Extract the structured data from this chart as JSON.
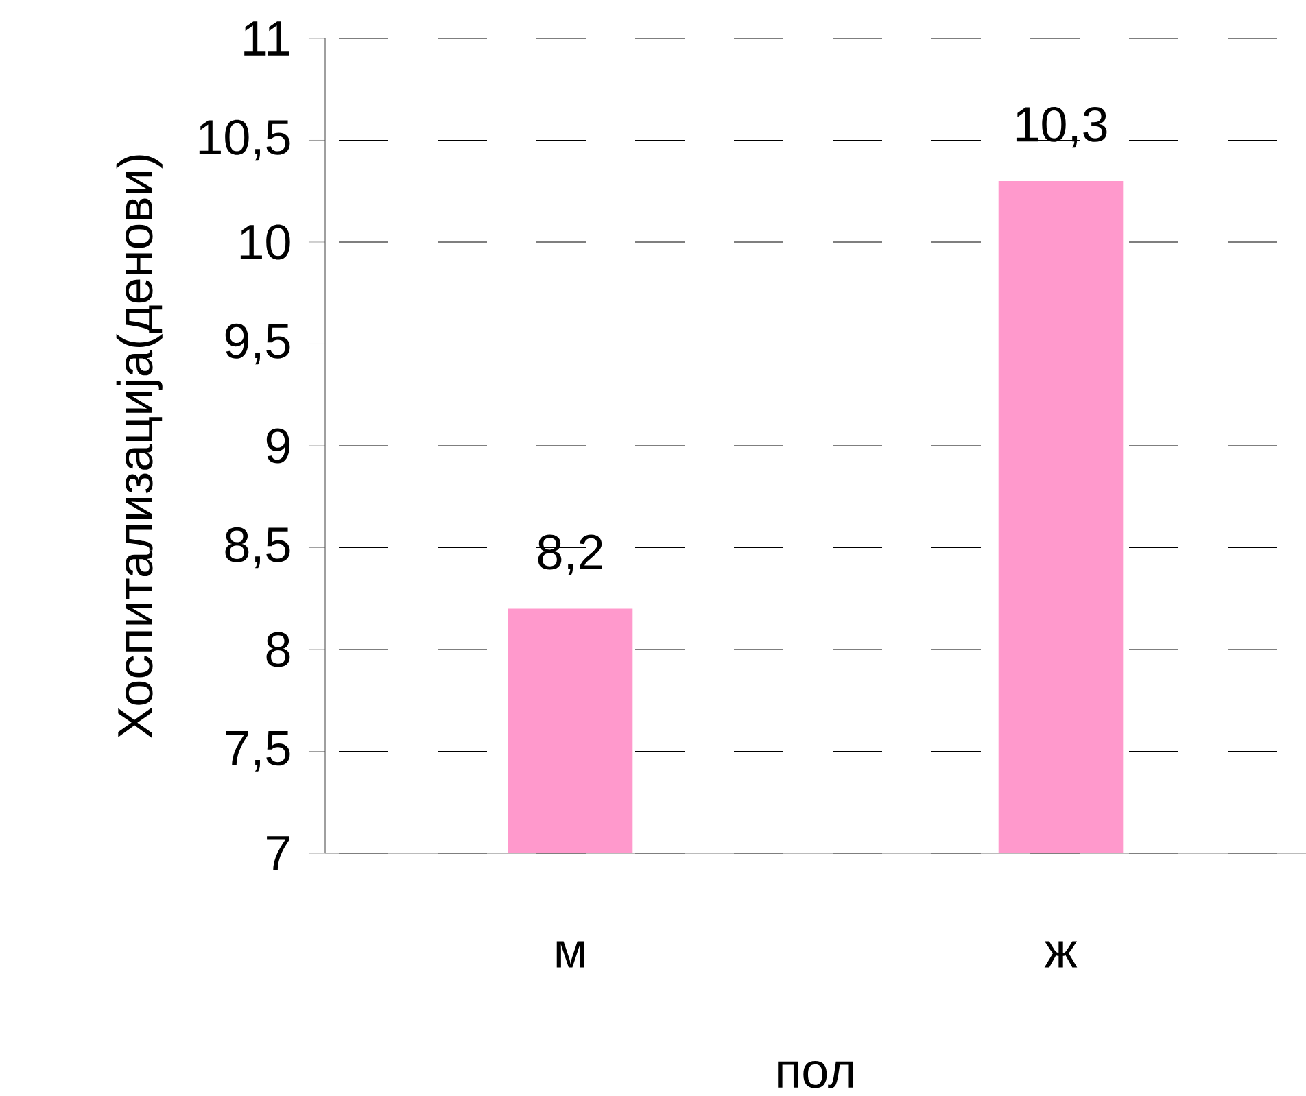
{
  "chart_data": {
    "type": "bar",
    "xlabel": "пол",
    "ylabel": "Хоспитализација(денови)",
    "categories": [
      "м",
      "ж"
    ],
    "values": [
      8.2,
      10.3
    ],
    "value_labels": [
      "8,2",
      "10,3"
    ],
    "color": "#ff99cc",
    "ylim": [
      7,
      11
    ],
    "yticks": [
      7,
      {
        "value": 7.5,
        "label": "7,5"
      },
      8,
      {
        "value": 8.5,
        "label": "8,5"
      },
      9,
      {
        "value": 9.5,
        "label": "9,5"
      },
      10,
      {
        "value": 10.5,
        "label": "10,5"
      },
      11
    ],
    "grid": "y"
  }
}
